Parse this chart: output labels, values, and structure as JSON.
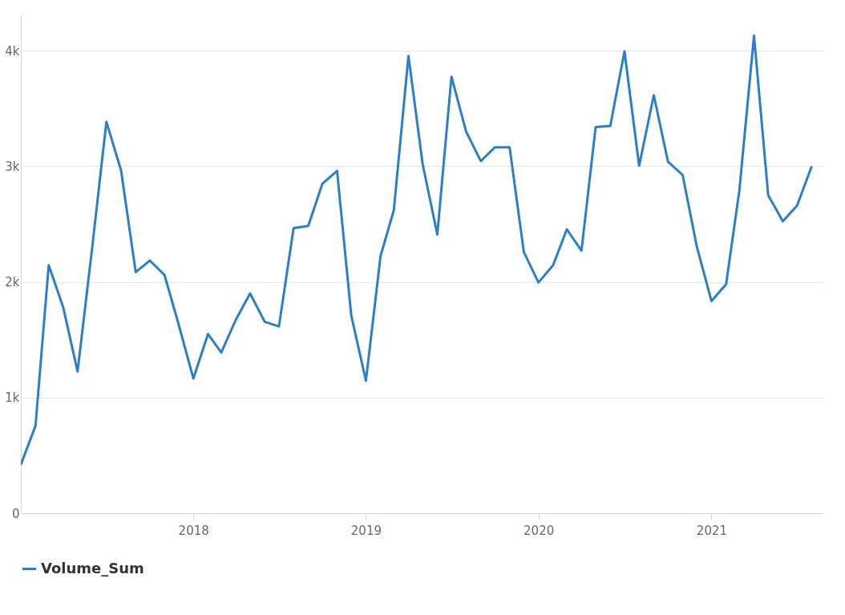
{
  "chart_data": {
    "type": "line",
    "x": [
      "2017-01",
      "2017-02",
      "2017-03",
      "2017-04",
      "2017-05",
      "2017-06",
      "2017-07",
      "2017-08",
      "2017-09",
      "2017-10",
      "2017-11",
      "2017-12",
      "2018-01",
      "2018-02",
      "2018-03",
      "2018-04",
      "2018-05",
      "2018-06",
      "2018-07",
      "2018-08",
      "2018-09",
      "2018-10",
      "2018-11",
      "2018-12",
      "2019-01",
      "2019-02",
      "2019-03",
      "2019-04",
      "2019-05",
      "2019-06",
      "2019-07",
      "2019-08",
      "2019-09",
      "2019-10",
      "2019-11",
      "2019-12",
      "2020-01",
      "2020-02",
      "2020-03",
      "2020-04",
      "2020-05",
      "2020-06",
      "2020-07",
      "2020-08",
      "2020-09",
      "2020-10",
      "2020-11",
      "2020-12",
      "2021-01",
      "2021-02",
      "2021-03",
      "2021-04",
      "2021-05",
      "2021-06",
      "2021-07",
      "2021-08"
    ],
    "series": [
      {
        "name": "Volume_Sum",
        "color": "#2a7fc9",
        "values": [
          420,
          755,
          2145,
          1775,
          1225,
          2300,
          3385,
          2965,
          2085,
          2185,
          2060,
          1630,
          1165,
          1550,
          1390,
          1675,
          1900,
          1655,
          1615,
          2465,
          2485,
          2850,
          2960,
          1710,
          1145,
          2225,
          2620,
          3955,
          3020,
          2410,
          3775,
          3300,
          3045,
          3165,
          3165,
          2260,
          1995,
          2145,
          2455,
          2270,
          3340,
          3350,
          3995,
          3005,
          3615,
          3040,
          2925,
          2305,
          1835,
          1980,
          2790,
          4130,
          2750,
          2525,
          2660,
          3000
        ]
      }
    ],
    "xlim": [
      "2017-01",
      "2021-08-24"
    ],
    "xticks": [
      {
        "value": "2018",
        "label": "2018"
      },
      {
        "value": "2019",
        "label": "2019"
      },
      {
        "value": "2020",
        "label": "2020"
      },
      {
        "value": "2021",
        "label": "2021"
      }
    ],
    "ylim": [
      0,
      4300
    ],
    "yticks": [
      {
        "value": 0,
        "label": "0"
      },
      {
        "value": 1000,
        "label": "1k"
      },
      {
        "value": 2000,
        "label": "2k"
      },
      {
        "value": 3000,
        "label": "3k"
      },
      {
        "value": 4000,
        "label": "4k"
      }
    ],
    "grid": "y",
    "legend": "bottom",
    "marker": "none",
    "line_style": "solid"
  }
}
